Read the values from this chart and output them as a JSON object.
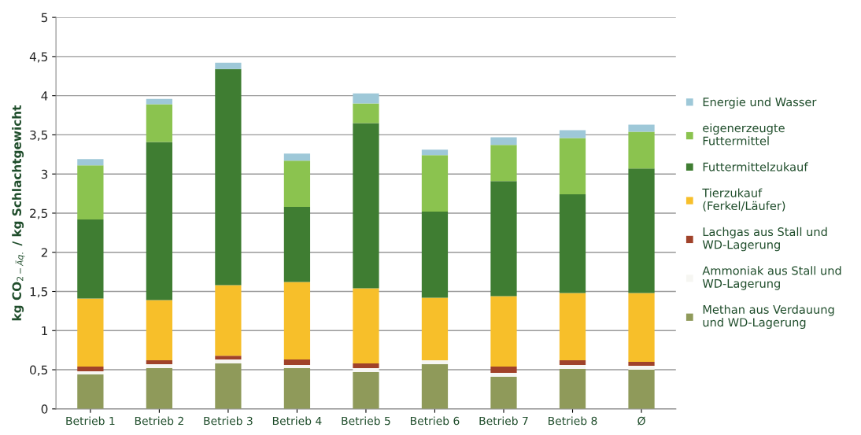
{
  "chart_data": {
    "type": "bar",
    "stacked": true,
    "ylabel": "kg CO$_{2−Äq.}$ / kg Schlachtgewicht",
    "categories": [
      "Betrieb 1",
      "Betrieb 2",
      "Betrieb 3",
      "Betrieb 4",
      "Betrieb 5",
      "Betrieb 6",
      "Betrieb 7",
      "Betrieb 8",
      "Ø"
    ],
    "series": [
      {
        "name": "Methan aus Verdauung\nund WD-Lagerung",
        "color": "#8f9a5a",
        "values": [
          0.44,
          0.52,
          0.58,
          0.52,
          0.47,
          0.57,
          0.41,
          0.51,
          0.5
        ]
      },
      {
        "name": "Ammoniak aus Stall und\nWD-Lagerung",
        "color": "#f6f6f2",
        "values": [
          0.04,
          0.05,
          0.05,
          0.04,
          0.05,
          0.05,
          0.05,
          0.05,
          0.05
        ]
      },
      {
        "name": "Lachgas aus Stall und\nWD-Lagerung",
        "color": "#a0422a",
        "values": [
          0.06,
          0.05,
          0.05,
          0.07,
          0.06,
          0,
          0.08,
          0.06,
          0.05
        ]
      },
      {
        "name": "Tierzukauf\n(Ferkel/Läufer)",
        "color": "#f7bf2a",
        "values": [
          0.87,
          0.77,
          0.9,
          0.99,
          0.96,
          0.8,
          0.9,
          0.86,
          0.88
        ]
      },
      {
        "name": "Futtermittelzukauf",
        "color": "#3f7d32",
        "values": [
          1.01,
          2.02,
          2.76,
          0.96,
          2.11,
          1.1,
          1.47,
          1.26,
          1.59
        ]
      },
      {
        "name": "eigenerzeugte\nFuttermittel",
        "color": "#8bc34f",
        "values": [
          0.69,
          0.48,
          0,
          0.59,
          0.25,
          0.72,
          0.46,
          0.72,
          0.47
        ]
      },
      {
        "name": "Energie und Wasser",
        "color": "#9ec8d8",
        "values": [
          0.08,
          0.07,
          0.08,
          0.09,
          0.13,
          0.07,
          0.1,
          0.1,
          0.09
        ]
      }
    ],
    "ylim": [
      0,
      5
    ],
    "yticks": [
      0,
      {
        "value": 0.5,
        "label": "0,5"
      },
      1,
      {
        "value": 1.5,
        "label": "1,5"
      },
      2,
      {
        "value": 2.5,
        "label": "2,5"
      },
      3,
      {
        "value": 3.5,
        "label": "3,5"
      },
      4,
      {
        "value": 4.5,
        "label": "4,5"
      },
      5
    ],
    "grid": "y",
    "legend": "right"
  }
}
